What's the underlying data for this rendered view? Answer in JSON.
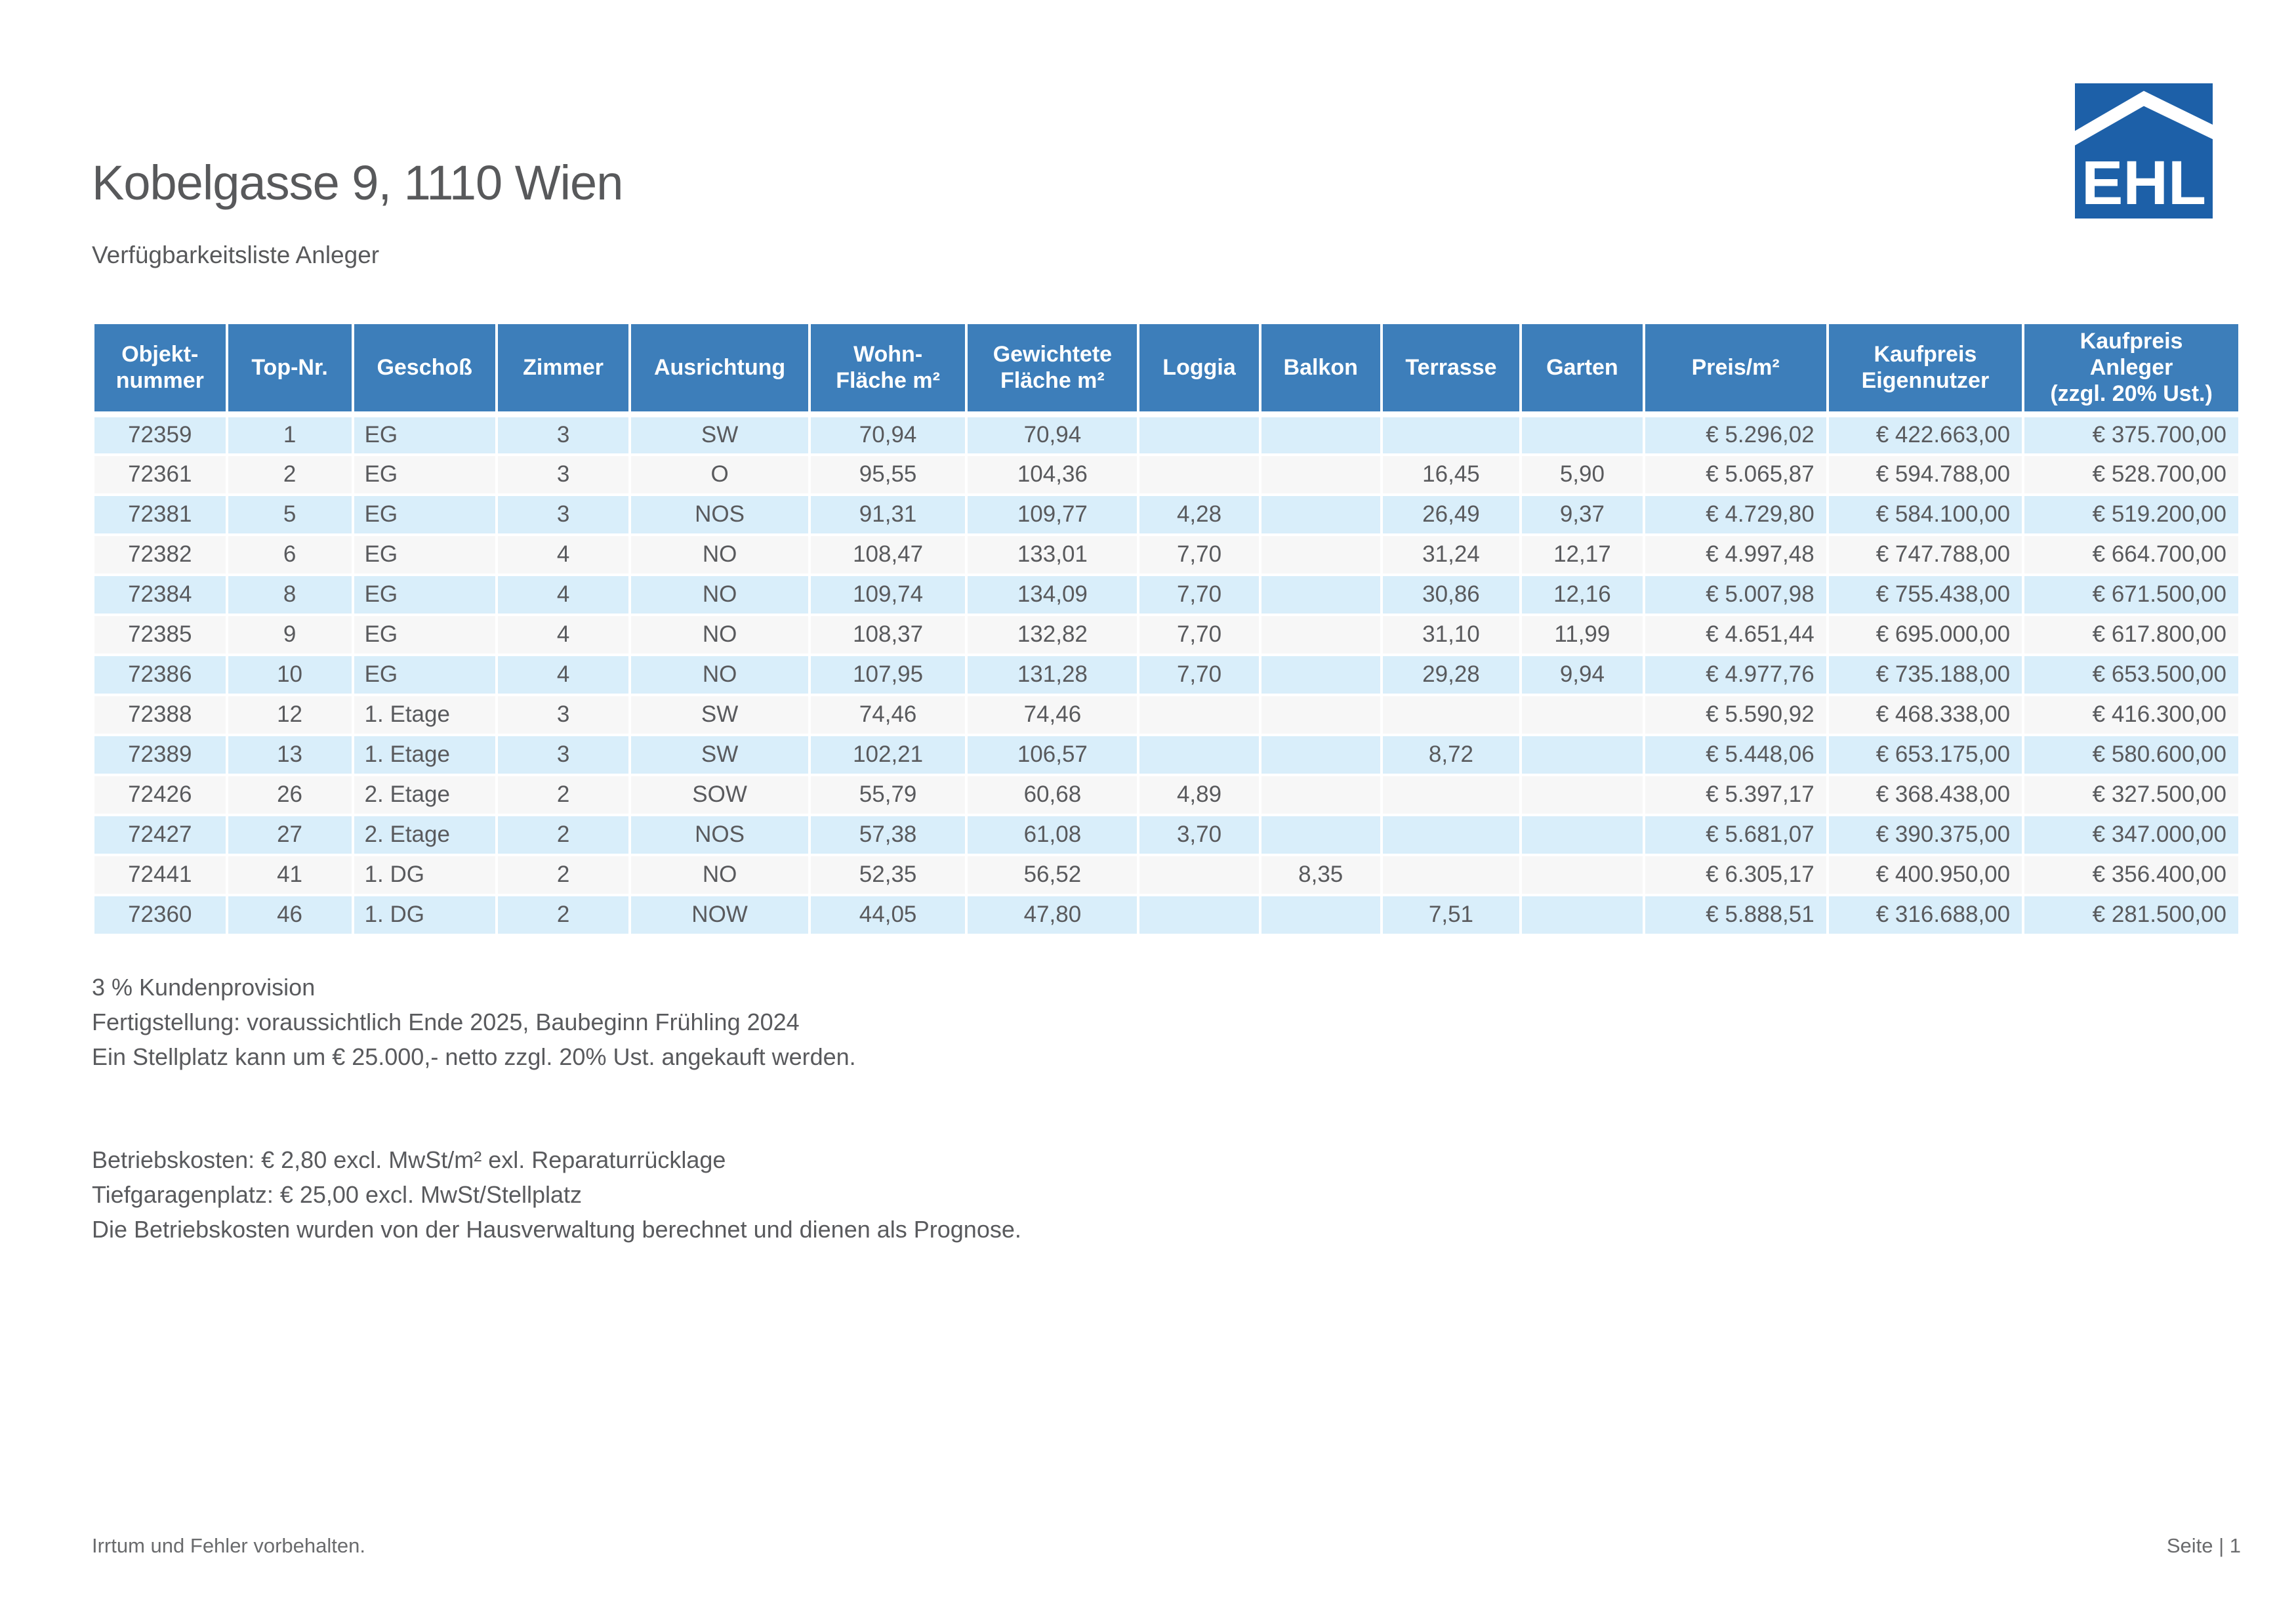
{
  "page": {
    "title": "Kobelgasse 9, 1110 Wien",
    "subtitle": "Verfügbarkeitsliste Anleger",
    "footer_left": "Irrtum und Fehler vorbehalten.",
    "footer_right": "Seite | 1"
  },
  "logo": {
    "text": "EHL",
    "color": "#1d60a8"
  },
  "colors": {
    "header_bg": "#3d7eba",
    "row_blue": "#d9eefa",
    "row_gray": "#f7f7f7",
    "text": "#595a5d"
  },
  "table": {
    "columns": [
      {
        "label": "Objekt-\nnummer"
      },
      {
        "label": "Top-Nr."
      },
      {
        "label": "Geschoß"
      },
      {
        "label": "Zimmer"
      },
      {
        "label": "Ausrichtung"
      },
      {
        "label": "Wohn-\nFläche m²"
      },
      {
        "label": "Gewichtete\nFläche m²"
      },
      {
        "label": "Loggia"
      },
      {
        "label": "Balkon"
      },
      {
        "label": "Terrasse"
      },
      {
        "label": "Garten"
      },
      {
        "label": "Preis/m²"
      },
      {
        "label": "Kaufpreis\nEigennutzer"
      },
      {
        "label": "Kaufpreis\nAnleger\n(zzgl. 20% Ust.)"
      }
    ],
    "rows": [
      [
        "72359",
        "1",
        "EG",
        "3",
        "SW",
        "70,94",
        "70,94",
        "",
        "",
        "",
        "",
        "€ 5.296,02",
        "€ 422.663,00",
        "€ 375.700,00"
      ],
      [
        "72361",
        "2",
        "EG",
        "3",
        "O",
        "95,55",
        "104,36",
        "",
        "",
        "16,45",
        "5,90",
        "€ 5.065,87",
        "€ 594.788,00",
        "€ 528.700,00"
      ],
      [
        "72381",
        "5",
        "EG",
        "3",
        "NOS",
        "91,31",
        "109,77",
        "4,28",
        "",
        "26,49",
        "9,37",
        "€ 4.729,80",
        "€ 584.100,00",
        "€ 519.200,00"
      ],
      [
        "72382",
        "6",
        "EG",
        "4",
        "NO",
        "108,47",
        "133,01",
        "7,70",
        "",
        "31,24",
        "12,17",
        "€ 4.997,48",
        "€ 747.788,00",
        "€ 664.700,00"
      ],
      [
        "72384",
        "8",
        "EG",
        "4",
        "NO",
        "109,74",
        "134,09",
        "7,70",
        "",
        "30,86",
        "12,16",
        "€ 5.007,98",
        "€ 755.438,00",
        "€ 671.500,00"
      ],
      [
        "72385",
        "9",
        "EG",
        "4",
        "NO",
        "108,37",
        "132,82",
        "7,70",
        "",
        "31,10",
        "11,99",
        "€ 4.651,44",
        "€ 695.000,00",
        "€ 617.800,00"
      ],
      [
        "72386",
        "10",
        "EG",
        "4",
        "NO",
        "107,95",
        "131,28",
        "7,70",
        "",
        "29,28",
        "9,94",
        "€ 4.977,76",
        "€ 735.188,00",
        "€ 653.500,00"
      ],
      [
        "72388",
        "12",
        "1. Etage",
        "3",
        "SW",
        "74,46",
        "74,46",
        "",
        "",
        "",
        "",
        "€ 5.590,92",
        "€ 468.338,00",
        "€ 416.300,00"
      ],
      [
        "72389",
        "13",
        "1. Etage",
        "3",
        "SW",
        "102,21",
        "106,57",
        "",
        "",
        "8,72",
        "",
        "€ 5.448,06",
        "€ 653.175,00",
        "€ 580.600,00"
      ],
      [
        "72426",
        "26",
        "2. Etage",
        "2",
        "SOW",
        "55,79",
        "60,68",
        "4,89",
        "",
        "",
        "",
        "€ 5.397,17",
        "€ 368.438,00",
        "€ 327.500,00"
      ],
      [
        "72427",
        "27",
        "2. Etage",
        "2",
        "NOS",
        "57,38",
        "61,08",
        "3,70",
        "",
        "",
        "",
        "€ 5.681,07",
        "€ 390.375,00",
        "€ 347.000,00"
      ],
      [
        "72441",
        "41",
        "1. DG",
        "2",
        "NO",
        "52,35",
        "56,52",
        "",
        "8,35",
        "",
        "",
        "€ 6.305,17",
        "€ 400.950,00",
        "€ 356.400,00"
      ],
      [
        "72360",
        "46",
        "1. DG",
        "2",
        "NOW",
        "44,05",
        "47,80",
        "",
        "",
        "7,51",
        "",
        "€ 5.888,51",
        "€ 316.688,00",
        "€ 281.500,00"
      ]
    ]
  },
  "notes1": {
    "lines": [
      "3 % Kundenprovision",
      "Fertigstellung: voraussichtlich Ende 2025, Baubeginn Frühling 2024",
      "Ein Stellplatz kann um € 25.000,- netto zzgl. 20% Ust. angekauft werden."
    ]
  },
  "notes2": {
    "lines": [
      "Betriebskosten: € 2,80 excl. MwSt/m² exl. Reparaturrücklage",
      "Tiefgaragenplatz: € 25,00 excl. MwSt/Stellplatz",
      "Die Betriebskosten wurden von der Hausverwaltung berechnet und dienen als Prognose."
    ]
  }
}
